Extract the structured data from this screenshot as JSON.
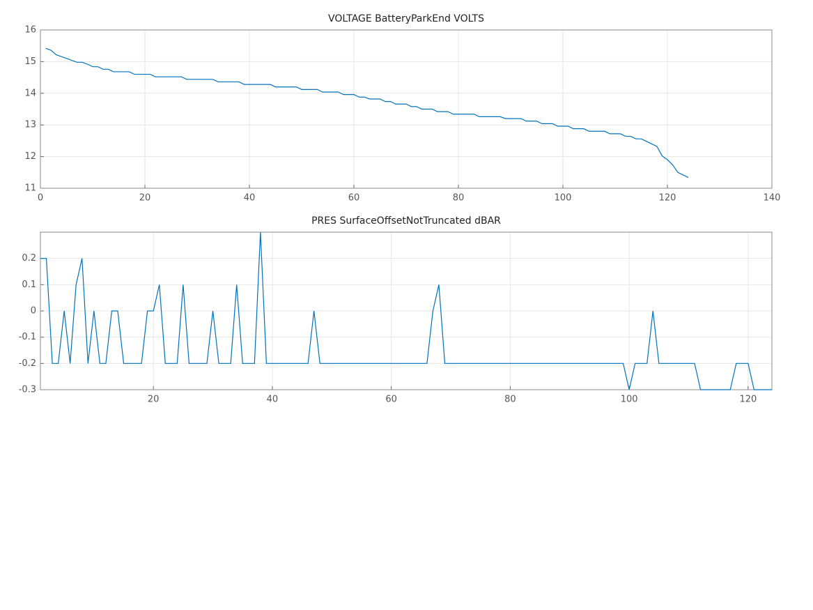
{
  "chart_data": [
    {
      "type": "line",
      "title": "VOLTAGE BatteryParkEnd VOLTS",
      "x": [
        1,
        2,
        3,
        4,
        5,
        6,
        7,
        8,
        9,
        10,
        11,
        12,
        13,
        14,
        15,
        16,
        17,
        18,
        19,
        20,
        21,
        22,
        23,
        24,
        25,
        26,
        27,
        28,
        29,
        30,
        31,
        32,
        33,
        34,
        35,
        36,
        37,
        38,
        39,
        40,
        41,
        42,
        43,
        44,
        45,
        46,
        47,
        48,
        49,
        50,
        51,
        52,
        53,
        54,
        55,
        56,
        57,
        58,
        59,
        60,
        61,
        62,
        63,
        64,
        65,
        66,
        67,
        68,
        69,
        70,
        71,
        72,
        73,
        74,
        75,
        76,
        77,
        78,
        79,
        80,
        81,
        82,
        83,
        84,
        85,
        86,
        87,
        88,
        89,
        90,
        91,
        92,
        93,
        94,
        95,
        96,
        97,
        98,
        99,
        100,
        101,
        102,
        103,
        104,
        105,
        106,
        107,
        108,
        109,
        110,
        111,
        112,
        113,
        114,
        115,
        116,
        117,
        118,
        119,
        120,
        121,
        122,
        123,
        124
      ],
      "series": [
        {
          "color": "#0072bd",
          "values": [
            15.42,
            15.36,
            15.22,
            15.16,
            15.1,
            15.04,
            14.98,
            14.98,
            14.92,
            14.84,
            14.84,
            14.76,
            14.76,
            14.68,
            14.68,
            14.68,
            14.68,
            14.6,
            14.6,
            14.6,
            14.6,
            14.52,
            14.52,
            14.52,
            14.52,
            14.52,
            14.52,
            14.44,
            14.44,
            14.44,
            14.44,
            14.44,
            14.44,
            14.36,
            14.36,
            14.36,
            14.36,
            14.36,
            14.28,
            14.28,
            14.28,
            14.28,
            14.28,
            14.28,
            14.2,
            14.2,
            14.2,
            14.2,
            14.2,
            14.12,
            14.12,
            14.12,
            14.12,
            14.04,
            14.04,
            14.04,
            14.04,
            13.96,
            13.96,
            13.96,
            13.88,
            13.88,
            13.82,
            13.82,
            13.82,
            13.74,
            13.74,
            13.66,
            13.66,
            13.66,
            13.58,
            13.58,
            13.5,
            13.5,
            13.5,
            13.42,
            13.42,
            13.42,
            13.34,
            13.34,
            13.34,
            13.34,
            13.34,
            13.26,
            13.26,
            13.26,
            13.26,
            13.26,
            13.2,
            13.2,
            13.2,
            13.2,
            13.12,
            13.12,
            13.12,
            13.04,
            13.04,
            13.04,
            12.96,
            12.96,
            12.96,
            12.88,
            12.88,
            12.88,
            12.8,
            12.8,
            12.8,
            12.8,
            12.72,
            12.72,
            12.72,
            12.64,
            12.64,
            12.56,
            12.56,
            12.48,
            12.4,
            12.32,
            12.02,
            11.9,
            11.74,
            11.5,
            11.42,
            11.34
          ]
        }
      ],
      "xlim": [
        0,
        140
      ],
      "xticks": [
        0,
        20,
        40,
        60,
        80,
        100,
        120,
        140
      ],
      "ylim": [
        11,
        16
      ],
      "yticks": [
        11,
        12,
        13,
        14,
        15,
        16
      ],
      "grid": true
    },
    {
      "type": "line",
      "title": "PRES SurfaceOffsetNotTruncated dBAR",
      "x": [
        1,
        2,
        3,
        4,
        5,
        6,
        7,
        8,
        9,
        10,
        11,
        12,
        13,
        14,
        15,
        16,
        17,
        18,
        19,
        20,
        21,
        22,
        23,
        24,
        25,
        26,
        27,
        28,
        29,
        30,
        31,
        32,
        33,
        34,
        35,
        36,
        37,
        38,
        39,
        40,
        41,
        42,
        43,
        44,
        45,
        46,
        47,
        48,
        49,
        50,
        51,
        52,
        53,
        54,
        55,
        56,
        57,
        58,
        59,
        60,
        61,
        62,
        63,
        64,
        65,
        66,
        67,
        68,
        69,
        70,
        71,
        72,
        73,
        74,
        75,
        76,
        77,
        78,
        79,
        80,
        81,
        82,
        83,
        84,
        85,
        86,
        87,
        88,
        89,
        90,
        91,
        92,
        93,
        94,
        95,
        96,
        97,
        98,
        99,
        100,
        101,
        102,
        103,
        104,
        105,
        106,
        107,
        108,
        109,
        110,
        111,
        112,
        113,
        114,
        115,
        116,
        117,
        118,
        119,
        120,
        121,
        122,
        123,
        124
      ],
      "series": [
        {
          "color": "#0072bd",
          "values": [
            0.2,
            0.2,
            -0.2,
            -0.2,
            0,
            -0.2,
            0.1,
            0.2,
            -0.2,
            0,
            -0.2,
            -0.2,
            0,
            0,
            -0.2,
            -0.2,
            -0.2,
            -0.2,
            0,
            0,
            0.1,
            -0.2,
            -0.2,
            -0.2,
            0.1,
            -0.2,
            -0.2,
            -0.2,
            -0.2,
            0,
            -0.2,
            -0.2,
            -0.2,
            0.1,
            -0.2,
            -0.2,
            -0.2,
            0.3,
            -0.2,
            -0.2,
            -0.2,
            -0.2,
            -0.2,
            -0.2,
            -0.2,
            -0.2,
            0,
            -0.2,
            -0.2,
            -0.2,
            -0.2,
            -0.2,
            -0.2,
            -0.2,
            -0.2,
            -0.2,
            -0.2,
            -0.2,
            -0.2,
            -0.2,
            -0.2,
            -0.2,
            -0.2,
            -0.2,
            -0.2,
            -0.2,
            0,
            0.1,
            -0.2,
            -0.2,
            -0.2,
            -0.2,
            -0.2,
            -0.2,
            -0.2,
            -0.2,
            -0.2,
            -0.2,
            -0.2,
            -0.2,
            -0.2,
            -0.2,
            -0.2,
            -0.2,
            -0.2,
            -0.2,
            -0.2,
            -0.2,
            -0.2,
            -0.2,
            -0.2,
            -0.2,
            -0.2,
            -0.2,
            -0.2,
            -0.2,
            -0.2,
            -0.2,
            -0.2,
            -0.3,
            -0.2,
            -0.2,
            -0.2,
            0,
            -0.2,
            -0.2,
            -0.2,
            -0.2,
            -0.2,
            -0.2,
            -0.2,
            -0.3,
            -0.3,
            -0.3,
            -0.3,
            -0.3,
            -0.3,
            -0.2,
            -0.2,
            -0.2,
            -0.3,
            -0.3,
            -0.3,
            -0.3
          ]
        }
      ],
      "xlim": [
        1,
        124
      ],
      "xticks": [
        20,
        40,
        60,
        80,
        100,
        120
      ],
      "ylim": [
        -0.3,
        0.3
      ],
      "yticks": [
        -0.3,
        -0.2,
        -0.1,
        0,
        0.1,
        0.2
      ],
      "grid": true
    }
  ]
}
